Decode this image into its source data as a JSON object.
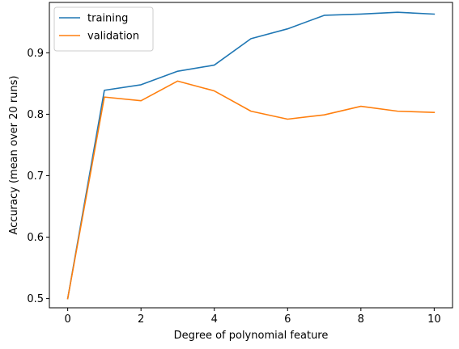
{
  "chart_data": {
    "type": "line",
    "title": "",
    "xlabel": "Degree of polynomial feature",
    "ylabel": "Accuracy (mean over 20 runs)",
    "xlim": [
      -0.5,
      10.5
    ],
    "ylim": [
      0.485,
      0.982
    ],
    "xticks": [
      0,
      2,
      4,
      6,
      8,
      10
    ],
    "yticks": [
      0.5,
      0.6,
      0.7,
      0.8,
      0.9
    ],
    "xtick_labels": [
      "0",
      "2",
      "4",
      "6",
      "8",
      "10"
    ],
    "ytick_labels": [
      "0.5",
      "0.6",
      "0.7",
      "0.8",
      "0.9"
    ],
    "grid": false,
    "legend_position": "upper-left",
    "x": [
      0,
      1,
      2,
      3,
      4,
      5,
      6,
      7,
      8,
      9,
      10
    ],
    "series": [
      {
        "name": "training",
        "color": "#1f77b4",
        "values": [
          0.5,
          0.839,
          0.848,
          0.87,
          0.88,
          0.923,
          0.939,
          0.961,
          0.963,
          0.966,
          0.963
        ]
      },
      {
        "name": "validation",
        "color": "#ff7f0e",
        "values": [
          0.5,
          0.828,
          0.822,
          0.854,
          0.838,
          0.805,
          0.792,
          0.799,
          0.813,
          0.805,
          0.803
        ]
      }
    ]
  }
}
